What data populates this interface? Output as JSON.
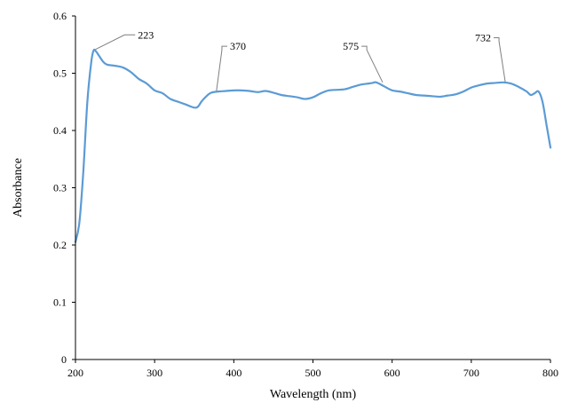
{
  "chart_data": {
    "type": "line",
    "title": "",
    "xlabel": "Wavelength (nm)",
    "ylabel": "Absorbance",
    "xlim": [
      200,
      800
    ],
    "ylim": [
      0,
      0.6
    ],
    "x_ticks": [
      200,
      300,
      400,
      500,
      600,
      700,
      800
    ],
    "y_ticks": [
      0,
      0.1,
      0.2,
      0.3,
      0.4,
      0.5,
      0.6
    ],
    "x_tick_labels": [
      "200",
      "300",
      "400",
      "500",
      "600",
      "700",
      "800"
    ],
    "y_tick_labels": [
      "0",
      "0.1",
      "0.2",
      "0.3",
      "0.4",
      "0.5",
      "0.6"
    ],
    "grid": false,
    "line_color": "#5b9bd5",
    "series": [
      {
        "x": [
          200,
          205,
          210,
          215,
          220,
          223,
          226,
          230,
          235,
          240,
          250,
          260,
          270,
          280,
          290,
          300,
          310,
          320,
          330,
          340,
          350,
          355,
          360,
          370,
          380,
          390,
          400,
          410,
          420,
          430,
          440,
          450,
          460,
          470,
          480,
          490,
          500,
          510,
          520,
          530,
          540,
          550,
          560,
          570,
          575,
          580,
          590,
          600,
          610,
          620,
          630,
          640,
          650,
          660,
          670,
          680,
          690,
          700,
          710,
          720,
          730,
          740,
          750,
          760,
          770,
          775,
          780,
          785,
          790,
          795,
          800
        ],
        "y": [
          0.205,
          0.24,
          0.33,
          0.45,
          0.52,
          0.54,
          0.538,
          0.53,
          0.52,
          0.515,
          0.513,
          0.51,
          0.502,
          0.49,
          0.482,
          0.47,
          0.465,
          0.455,
          0.45,
          0.445,
          0.44,
          0.442,
          0.452,
          0.465,
          0.468,
          0.469,
          0.47,
          0.47,
          0.469,
          0.467,
          0.469,
          0.466,
          0.462,
          0.46,
          0.458,
          0.455,
          0.458,
          0.465,
          0.47,
          0.471,
          0.472,
          0.476,
          0.48,
          0.482,
          0.483,
          0.484,
          0.477,
          0.47,
          0.468,
          0.465,
          0.462,
          0.461,
          0.46,
          0.459,
          0.461,
          0.463,
          0.468,
          0.475,
          0.479,
          0.482,
          0.483,
          0.484,
          0.482,
          0.476,
          0.468,
          0.462,
          0.465,
          0.468,
          0.45,
          0.41,
          0.37
        ]
      }
    ],
    "annotations": [
      {
        "label": "223",
        "x": 223,
        "y": 0.54,
        "tx": 262,
        "ty": 0.567
      },
      {
        "label": "370",
        "x": 378,
        "y": 0.468,
        "tx": 385,
        "ty": 0.547
      },
      {
        "label": "575",
        "x": 588,
        "y": 0.484,
        "tx": 568,
        "ty": 0.547
      },
      {
        "label": "732",
        "x": 743,
        "y": 0.484,
        "tx": 735,
        "ty": 0.562
      }
    ]
  }
}
